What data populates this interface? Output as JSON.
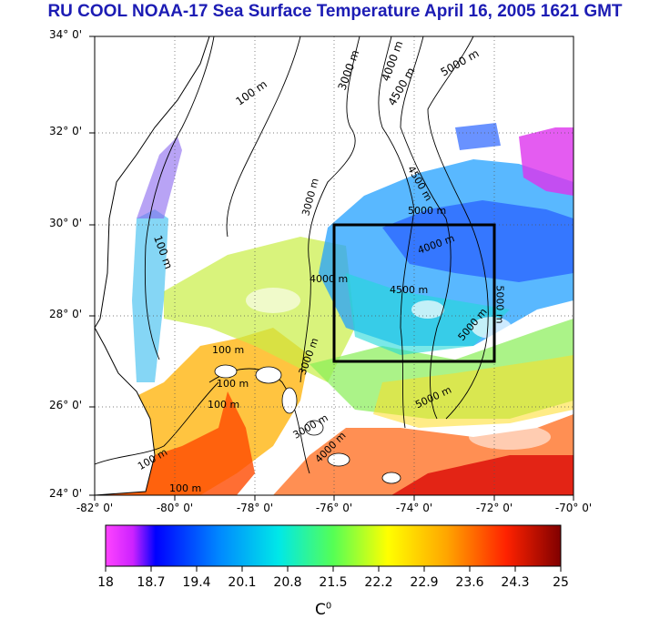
{
  "title": "RU COOL  NOAA-17 Sea Surface Temperature April 16, 2005 1621 GMT",
  "lat_labels": [
    "34° 0'",
    "32° 0'",
    "30° 0'",
    "28° 0'",
    "26° 0'",
    "24° 0'"
  ],
  "lon_labels": [
    "-82° 0'",
    "-80° 0'",
    "-78° 0'",
    "-76° 0'",
    "-74° 0'",
    "-72° 0'",
    "-70° 0'"
  ],
  "contour_labels": [
    "100 m",
    "3000 m",
    "4000 m",
    "4500 m",
    "5000 m",
    "100 m",
    "3000 m",
    "4500 m",
    "5000 m",
    "4000 m",
    "4000 m",
    "4500 m",
    "5000 m",
    "3000 m",
    "100 m",
    "100 m",
    "100 m",
    "100 m",
    "3000 m",
    "5000 m",
    "4000 m",
    "100 m",
    "5000 m"
  ],
  "colorbar": {
    "ticks": [
      "18",
      "18.7",
      "19.4",
      "20.1",
      "20.8",
      "21.5",
      "22.2",
      "22.9",
      "23.6",
      "24.3",
      "25"
    ],
    "unit_label": "C",
    "unit_sup": "0",
    "min": 18,
    "max": 25,
    "colors": [
      "#ff44ff",
      "#0000ff",
      "#0088ff",
      "#00e0e0",
      "#44ff44",
      "#ffff00",
      "#ffa500",
      "#ff2200",
      "#800000"
    ]
  },
  "map_extent": {
    "lon_min": -82,
    "lon_max": -70,
    "lat_min": 24,
    "lat_max": 34
  },
  "study_box": {
    "lon_min": -76,
    "lon_max": -72,
    "lat_min": 27,
    "lat_max": 30
  }
}
